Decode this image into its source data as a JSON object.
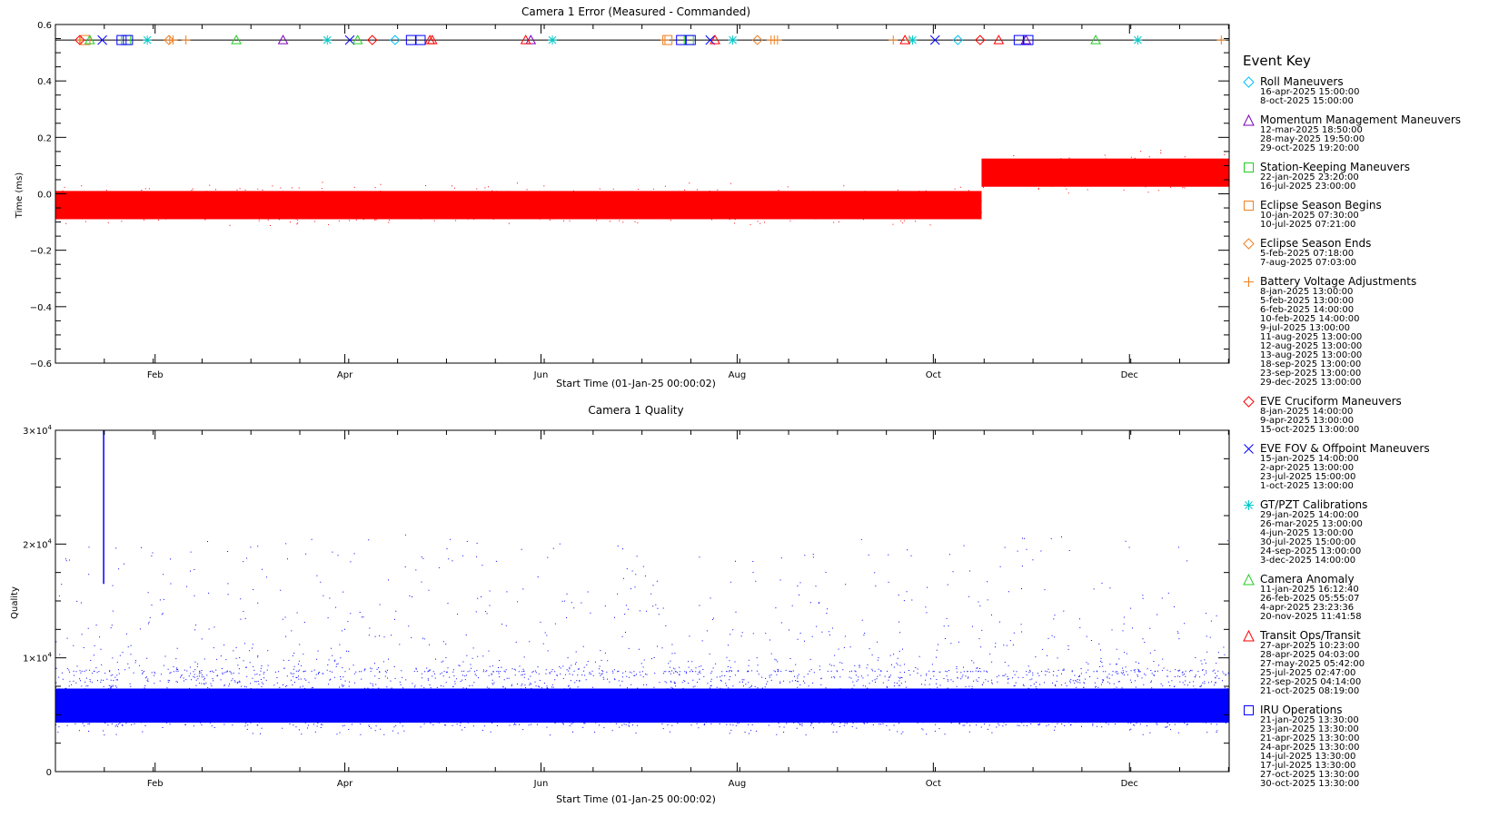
{
  "chart_data": [
    {
      "type": "scatter",
      "title": "Camera 1 Error (Measured - Commanded)",
      "xlabel": "Start Time (01-Jan-25 00:00:02)",
      "ylabel": "Time (ms)",
      "xlim": [
        0,
        365
      ],
      "ylim": [
        -0.6,
        0.6
      ],
      "yticks": [
        {
          "v": 0.6,
          "label": "0.6"
        },
        {
          "v": 0.4,
          "label": "0.4"
        },
        {
          "v": 0.2,
          "label": "0.2"
        },
        {
          "v": 0.0,
          "label": "0.0"
        },
        {
          "v": -0.2,
          "label": "−0.2"
        },
        {
          "v": -0.4,
          "label": "−0.4"
        },
        {
          "v": -0.6,
          "label": "−0.6"
        }
      ],
      "xticks": [
        {
          "day": 31,
          "label": "Feb"
        },
        {
          "day": 90,
          "label": "Apr"
        },
        {
          "day": 151,
          "label": "Jun"
        },
        {
          "day": 212,
          "label": "Aug"
        },
        {
          "day": 273,
          "label": "Oct"
        },
        {
          "day": 334,
          "label": "Dec"
        }
      ],
      "marker_line_y": 0.545,
      "series": [
        {
          "color": "#ff0000",
          "segments": [
            {
              "x0": 0,
              "x1": 288,
              "center": -0.04,
              "core": 0.05,
              "spread": 0.095
            },
            {
              "x0": 288,
              "x1": 365,
              "center": 0.075,
              "core": 0.05,
              "spread": 0.095
            }
          ]
        }
      ]
    },
    {
      "type": "scatter",
      "title": "Camera 1 Quality",
      "xlabel": "Start Time (01-Jan-25 00:00:02)",
      "ylabel": "Quality",
      "xlim": [
        0,
        365
      ],
      "ylim": [
        0,
        30000
      ],
      "yticks": [
        {
          "v": 0,
          "label": "0",
          "sup": ""
        },
        {
          "v": 10000,
          "label": "1×10",
          "sup": "4"
        },
        {
          "v": 20000,
          "label": "2×10",
          "sup": "4"
        },
        {
          "v": 30000,
          "label": "3×10",
          "sup": "4"
        }
      ],
      "xticks": [
        {
          "day": 31,
          "label": "Feb"
        },
        {
          "day": 90,
          "label": "Apr"
        },
        {
          "day": 151,
          "label": "Jun"
        },
        {
          "day": 212,
          "label": "Aug"
        },
        {
          "day": 273,
          "label": "Oct"
        },
        {
          "day": 334,
          "label": "Dec"
        }
      ],
      "series": [
        {
          "color": "#0000ff",
          "segments": [
            {
              "x0": 0,
              "x1": 365,
              "low": 4000,
              "high": 8800
            }
          ],
          "spike": {
            "x": 15,
            "low": 16500,
            "high": 30000
          }
        }
      ]
    }
  ],
  "legend": {
    "title": "Event Key",
    "entries": [
      {
        "symbol": "diamond",
        "color": "#00bfff",
        "label": "Roll Maneuvers",
        "dates": [
          "16-apr-2025 15:00:00",
          "8-oct-2025 15:00:00"
        ]
      },
      {
        "symbol": "triangle",
        "color": "#7a00b8",
        "label": "Momentum Management Maneuvers",
        "dates": [
          "12-mar-2025 18:50:00",
          "28-may-2025 19:50:00",
          "29-oct-2025 19:20:00"
        ]
      },
      {
        "symbol": "square",
        "color": "#22cc22",
        "label": "Station-Keeping Maneuvers",
        "dates": [
          "22-jan-2025 23:20:00",
          "16-jul-2025 23:00:00"
        ]
      },
      {
        "symbol": "square",
        "color": "#f08020",
        "label": "Eclipse Season Begins",
        "dates": [
          "10-jan-2025 07:30:00",
          "10-jul-2025 07:21:00"
        ]
      },
      {
        "symbol": "diamond",
        "color": "#f08020",
        "label": "Eclipse Season Ends",
        "dates": [
          "5-feb-2025 07:18:00",
          "7-aug-2025 07:03:00"
        ]
      },
      {
        "symbol": "plus",
        "color": "#f08020",
        "label": "Battery Voltage Adjustments",
        "dates": [
          "8-jan-2025 13:00:00",
          "5-feb-2025 13:00:00",
          "6-feb-2025 14:00:00",
          "10-feb-2025 14:00:00",
          "9-jul-2025 13:00:00",
          "11-aug-2025 13:00:00",
          "12-aug-2025 13:00:00",
          "13-aug-2025 13:00:00",
          "18-sep-2025 13:00:00",
          "23-sep-2025 13:00:00",
          "29-dec-2025 13:00:00"
        ]
      },
      {
        "symbol": "diamond",
        "color": "#ff0000",
        "label": "EVE Cruciform Maneuvers",
        "dates": [
          "8-jan-2025 14:00:00",
          "9-apr-2025 13:00:00",
          "15-oct-2025 13:00:00"
        ]
      },
      {
        "symbol": "x",
        "color": "#0000ff",
        "label": "EVE FOV & Offpoint Maneuvers",
        "dates": [
          "15-jan-2025 14:00:00",
          "2-apr-2025 13:00:00",
          "23-jul-2025 15:00:00",
          "1-oct-2025 13:00:00"
        ]
      },
      {
        "symbol": "asterisk",
        "color": "#00c8c8",
        "label": "GT/PZT Calibrations",
        "dates": [
          "29-jan-2025 14:00:00",
          "26-mar-2025 13:00:00",
          "4-jun-2025 13:00:00",
          "30-jul-2025 15:00:00",
          "24-sep-2025 13:00:00",
          "3-dec-2025 14:00:00"
        ]
      },
      {
        "symbol": "triangle",
        "color": "#22cc22",
        "label": "Camera Anomaly",
        "dates": [
          "11-jan-2025 16:12:40",
          "26-feb-2025 05:55:07",
          "4-apr-2025 23:23:36",
          "20-nov-2025 11:41:58"
        ]
      },
      {
        "symbol": "triangle",
        "color": "#ff0000",
        "label": "Transit Ops/Transit",
        "dates": [
          "27-apr-2025 10:23:00",
          "28-apr-2025 04:03:00",
          "27-may-2025 05:42:00",
          "25-jul-2025 02:47:00",
          "22-sep-2025 04:14:00",
          "21-oct-2025 08:19:00"
        ]
      },
      {
        "symbol": "square",
        "color": "#0000ff",
        "label": "IRU Operations",
        "dates": [
          "21-jan-2025 13:30:00",
          "23-jan-2025 13:30:00",
          "21-apr-2025 13:30:00",
          "24-apr-2025 13:30:00",
          "14-jul-2025 13:30:00",
          "17-jul-2025 13:30:00",
          "27-oct-2025 13:30:00",
          "30-oct-2025 13:30:00"
        ]
      }
    ]
  }
}
